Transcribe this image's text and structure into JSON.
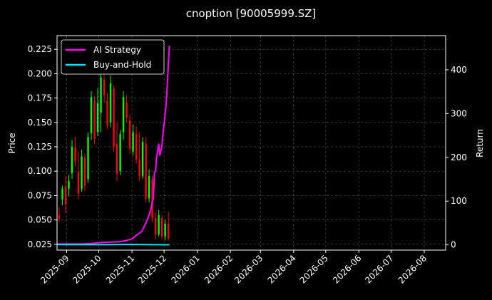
{
  "chart_data": {
    "type": "line",
    "title": "cnoption [90005999.SZ]",
    "ylabel_left": "Price",
    "ylabel_right": "Return",
    "xlim": [
      "2025-08-23",
      "2026-08-21"
    ],
    "ylim_left": [
      0.019,
      0.239
    ],
    "ylim_right": [
      -12,
      478
    ],
    "yticks_left": [
      "0.025",
      "0.050",
      "0.075",
      "0.100",
      "0.125",
      "0.150",
      "0.175",
      "0.200",
      "0.225"
    ],
    "yticks_right": [
      "0",
      "100",
      "200",
      "300",
      "400"
    ],
    "xticks": [
      "2025-09",
      "2025-10",
      "2025-11",
      "2025-12",
      "2026-01",
      "2026-02",
      "2026-03",
      "2026-04",
      "2026-05",
      "2026-06",
      "2026-07",
      "2026-08"
    ],
    "grid": true,
    "legend_position": "top-left",
    "series": [
      {
        "name": "AI Strategy",
        "axis": "right",
        "color": "#ff00ff",
        "x": [
          "2025-08-23",
          "2025-09-05",
          "2025-09-15",
          "2025-09-25",
          "2025-10-01",
          "2025-10-10",
          "2025-10-20",
          "2025-10-25",
          "2025-10-30",
          "2025-11-02",
          "2025-11-05",
          "2025-11-10",
          "2025-11-13",
          "2025-11-15",
          "2025-11-17",
          "2025-11-19",
          "2025-11-20",
          "2025-11-21",
          "2025-11-22",
          "2025-11-23",
          "2025-11-24",
          "2025-11-25",
          "2025-11-26",
          "2025-11-27",
          "2025-11-28",
          "2025-11-29",
          "2025-11-30",
          "2025-12-01",
          "2025-12-02",
          "2025-12-03",
          "2025-12-04",
          "2025-12-05",
          "2025-12-06"
        ],
        "values": [
          2,
          2,
          2,
          3,
          5,
          6,
          7,
          9,
          12,
          15,
          22,
          30,
          45,
          55,
          68,
          85,
          100,
          105,
          165,
          168,
          200,
          215,
          230,
          205,
          215,
          225,
          255,
          275,
          300,
          320,
          365,
          415,
          455
        ]
      },
      {
        "name": "Buy-and-Hold",
        "axis": "right",
        "color": "#00e5ff",
        "x": [
          "2025-08-23",
          "2025-09-20",
          "2025-10-15",
          "2025-11-01",
          "2025-11-20",
          "2025-12-06"
        ],
        "values": [
          0.5,
          0.3,
          0.5,
          1,
          0.4,
          0.2
        ]
      }
    ],
    "candles": {
      "axis": "left",
      "up_color": "#00ff00",
      "down_color": "#ff0000",
      "data": [
        {
          "date": "2025-08-25",
          "o": 0.055,
          "h": 0.063,
          "l": 0.048,
          "c": 0.051
        },
        {
          "date": "2025-08-28",
          "o": 0.071,
          "h": 0.085,
          "l": 0.065,
          "c": 0.082
        },
        {
          "date": "2025-08-31",
          "o": 0.084,
          "h": 0.095,
          "l": 0.057,
          "c": 0.066
        },
        {
          "date": "2025-09-03",
          "o": 0.082,
          "h": 0.096,
          "l": 0.074,
          "c": 0.09
        },
        {
          "date": "2025-09-06",
          "o": 0.098,
          "h": 0.132,
          "l": 0.092,
          "c": 0.125
        },
        {
          "date": "2025-09-09",
          "o": 0.124,
          "h": 0.135,
          "l": 0.105,
          "c": 0.11
        },
        {
          "date": "2025-09-12",
          "o": 0.099,
          "h": 0.12,
          "l": 0.071,
          "c": 0.077
        },
        {
          "date": "2025-09-15",
          "o": 0.082,
          "h": 0.122,
          "l": 0.079,
          "c": 0.115
        },
        {
          "date": "2025-09-18",
          "o": 0.114,
          "h": 0.118,
          "l": 0.08,
          "c": 0.085
        },
        {
          "date": "2025-09-21",
          "o": 0.092,
          "h": 0.14,
          "l": 0.088,
          "c": 0.135
        },
        {
          "date": "2025-09-24",
          "o": 0.139,
          "h": 0.182,
          "l": 0.132,
          "c": 0.176
        },
        {
          "date": "2025-09-27",
          "o": 0.172,
          "h": 0.177,
          "l": 0.128,
          "c": 0.133
        },
        {
          "date": "2025-09-30",
          "o": 0.14,
          "h": 0.185,
          "l": 0.136,
          "c": 0.17
        },
        {
          "date": "2025-10-03",
          "o": 0.16,
          "h": 0.205,
          "l": 0.14,
          "c": 0.196
        },
        {
          "date": "2025-10-06",
          "o": 0.194,
          "h": 0.212,
          "l": 0.17,
          "c": 0.178
        },
        {
          "date": "2025-10-09",
          "o": 0.172,
          "h": 0.18,
          "l": 0.143,
          "c": 0.147
        },
        {
          "date": "2025-10-12",
          "o": 0.15,
          "h": 0.198,
          "l": 0.145,
          "c": 0.19
        },
        {
          "date": "2025-10-15",
          "o": 0.185,
          "h": 0.188,
          "l": 0.12,
          "c": 0.125
        },
        {
          "date": "2025-10-18",
          "o": 0.128,
          "h": 0.15,
          "l": 0.09,
          "c": 0.097
        },
        {
          "date": "2025-10-21",
          "o": 0.1,
          "h": 0.142,
          "l": 0.096,
          "c": 0.138
        },
        {
          "date": "2025-10-24",
          "o": 0.14,
          "h": 0.182,
          "l": 0.132,
          "c": 0.176
        },
        {
          "date": "2025-10-27",
          "o": 0.17,
          "h": 0.178,
          "l": 0.15,
          "c": 0.155
        },
        {
          "date": "2025-10-30",
          "o": 0.152,
          "h": 0.158,
          "l": 0.118,
          "c": 0.123
        },
        {
          "date": "2025-11-02",
          "o": 0.12,
          "h": 0.148,
          "l": 0.116,
          "c": 0.14
        },
        {
          "date": "2025-11-05",
          "o": 0.138,
          "h": 0.146,
          "l": 0.108,
          "c": 0.112
        },
        {
          "date": "2025-11-08",
          "o": 0.112,
          "h": 0.14,
          "l": 0.09,
          "c": 0.095
        },
        {
          "date": "2025-11-11",
          "o": 0.095,
          "h": 0.135,
          "l": 0.092,
          "c": 0.13
        },
        {
          "date": "2025-11-14",
          "o": 0.128,
          "h": 0.135,
          "l": 0.068,
          "c": 0.072
        },
        {
          "date": "2025-11-17",
          "o": 0.072,
          "h": 0.102,
          "l": 0.068,
          "c": 0.095
        },
        {
          "date": "2025-11-20",
          "o": 0.092,
          "h": 0.095,
          "l": 0.048,
          "c": 0.052
        },
        {
          "date": "2025-11-23",
          "o": 0.052,
          "h": 0.058,
          "l": 0.03,
          "c": 0.035
        },
        {
          "date": "2025-11-26",
          "o": 0.035,
          "h": 0.06,
          "l": 0.033,
          "c": 0.055
        },
        {
          "date": "2025-11-29",
          "o": 0.052,
          "h": 0.055,
          "l": 0.03,
          "c": 0.033
        },
        {
          "date": "2025-12-02",
          "o": 0.033,
          "h": 0.05,
          "l": 0.029,
          "c": 0.046
        },
        {
          "date": "2025-12-05",
          "o": 0.046,
          "h": 0.058,
          "l": 0.029,
          "c": 0.031
        }
      ]
    }
  }
}
